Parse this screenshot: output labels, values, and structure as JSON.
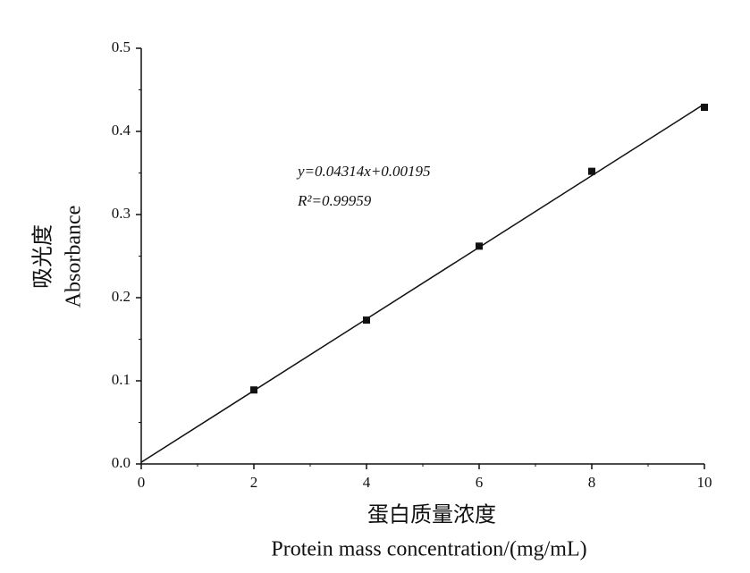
{
  "chart_data": {
    "type": "scatter",
    "x_label": [
      "蛋白质量浓度",
      "Protein mass concentration/(mg/mL)"
    ],
    "y_label": [
      "吸光度",
      "Absorbance"
    ],
    "annotations": [
      "y=0.04314x+0.00195",
      "R²=0.99959"
    ],
    "x": [
      2,
      4,
      6,
      8,
      10
    ],
    "values": [
      0.089,
      0.173,
      0.262,
      0.352,
      0.429
    ],
    "color": "#111111",
    "fit_line": {
      "x": [
        0,
        10
      ],
      "values": [
        0.002,
        0.433
      ]
    },
    "xlim": [
      0,
      10
    ],
    "xticks": [
      0,
      2,
      4,
      6,
      8,
      10
    ],
    "ylim": [
      0,
      0.5
    ],
    "yticks": [
      {
        "value": 0,
        "label": "0.0"
      },
      0.1,
      0.2,
      0.3,
      0.4,
      0.5
    ],
    "grid": false
  }
}
